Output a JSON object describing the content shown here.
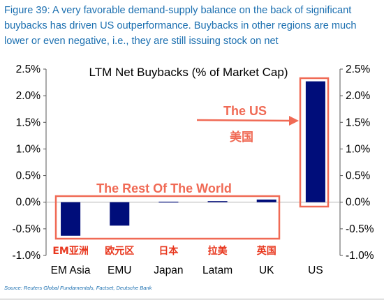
{
  "figure_caption": "Figure 39: A very favorable demand-supply balance on the back of significant buybacks has driven US outperformance. Buybacks in other regions are much lower or even negative, i.e., they are still issuing stock on net",
  "source_note": "Source: Reuters Global Fundamentals, Factset, Deutsche Bank",
  "colors": {
    "bar": "#000d7a",
    "highlight": "#f06a55",
    "caption": "#1b6fb0"
  },
  "annotations": {
    "us_label": "The US",
    "us_label_cn": "美国",
    "rest_label": "The Rest Of The World"
  },
  "chart_data": {
    "type": "bar",
    "title": "LTM Net Buybacks (% of Market Cap)",
    "categories": [
      "EM Asia",
      "EMU",
      "Japan",
      "Latam",
      "UK",
      "US"
    ],
    "categories_cn": [
      "EM亚洲",
      "欧元区",
      "日本",
      "拉美",
      "英国",
      ""
    ],
    "values": [
      -0.63,
      -0.44,
      0.01,
      0.02,
      0.05,
      2.27
    ],
    "ylim": [
      -1.0,
      2.5
    ],
    "yticks": [
      "2.5%",
      "2.0%",
      "1.5%",
      "1.0%",
      "0.5%",
      "0.0%",
      "-0.5%",
      "-1.0%"
    ],
    "ytick_values": [
      2.5,
      2.0,
      1.5,
      1.0,
      0.5,
      0.0,
      -0.5,
      -1.0
    ],
    "xlabel": "",
    "ylabel": ""
  }
}
